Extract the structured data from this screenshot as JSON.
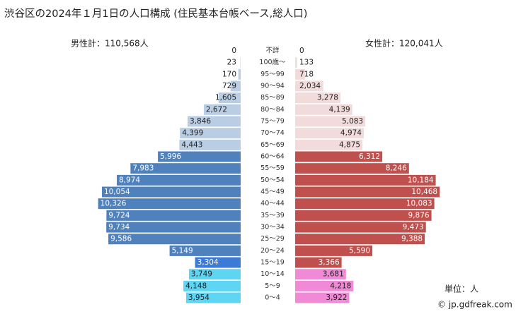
{
  "chart_data": {
    "type": "pyramid",
    "title": "渋谷区の2024年１月1日の人口構成 (住民基本台帳ベース,総人口)",
    "male_total": "男性計：110,568人",
    "female_total": "女性計：120,041人",
    "unit": "単位：人",
    "credit": "© jp.gdfreak.com",
    "categories": [
      "不詳",
      "100歳～",
      "95～99",
      "90～94",
      "85～89",
      "80～84",
      "75～79",
      "70～74",
      "65～69",
      "60～64",
      "55～59",
      "50～54",
      "45～49",
      "40～44",
      "35～39",
      "30～34",
      "25～29",
      "20～24",
      "15～19",
      "10～14",
      "5～9",
      "0～4"
    ],
    "series": [
      {
        "side": "left",
        "values": [
          0,
          23,
          170,
          729,
          1605,
          2672,
          3846,
          4399,
          4443,
          5996,
          7983,
          8974,
          10054,
          10326,
          9724,
          9734,
          9586,
          5149,
          3304,
          3749,
          4148,
          3954
        ],
        "value_labels": [
          "0",
          "23",
          "170",
          "729",
          "1,605",
          "2,672",
          "3,846",
          "4,399",
          "4,443",
          "5,996",
          "7,983",
          "8,974",
          "10,054",
          "10,326",
          "9,724",
          "9,734",
          "9,586",
          "5,149",
          "3,304",
          "3,749",
          "4,148",
          "3,954"
        ],
        "colors": [
          "#b9cde5",
          "#b9cde5",
          "#b9cde5",
          "#b9cde5",
          "#b9cde5",
          "#b9cde5",
          "#b9cde5",
          "#b9cde5",
          "#b9cde5",
          "#4f81bd",
          "#4f81bd",
          "#4f81bd",
          "#4f81bd",
          "#4f81bd",
          "#4f81bd",
          "#4f81bd",
          "#4f81bd",
          "#4f81bd",
          "#3c7ad8",
          "#5dd5f3",
          "#5dd5f3",
          "#5dd5f3"
        ]
      },
      {
        "side": "right",
        "values": [
          0,
          133,
          718,
          2034,
          3278,
          4139,
          5083,
          4974,
          4875,
          6312,
          8246,
          10184,
          10468,
          10083,
          9876,
          9473,
          9388,
          5590,
          3366,
          3681,
          4218,
          3922
        ],
        "value_labels": [
          "0",
          "133",
          "718",
          "2,034",
          "3,278",
          "4,139",
          "5,083",
          "4,974",
          "4,875",
          "6,312",
          "8,246",
          "10,184",
          "10,468",
          "10,083",
          "9,876",
          "9,473",
          "9,388",
          "5,590",
          "3,366",
          "3,681",
          "4,218",
          "3,922"
        ],
        "colors": [
          "#f2dcdb",
          "#f2dcdb",
          "#f2dcdb",
          "#f2dcdb",
          "#f2dcdb",
          "#f2dcdb",
          "#f2dcdb",
          "#f2dcdb",
          "#f2dcdb",
          "#c0504d",
          "#c0504d",
          "#c0504d",
          "#c0504d",
          "#c0504d",
          "#c0504d",
          "#c0504d",
          "#c0504d",
          "#c0504d",
          "#c0504d",
          "#f08ad6",
          "#f08ad6",
          "#f08ad6"
        ]
      }
    ]
  }
}
